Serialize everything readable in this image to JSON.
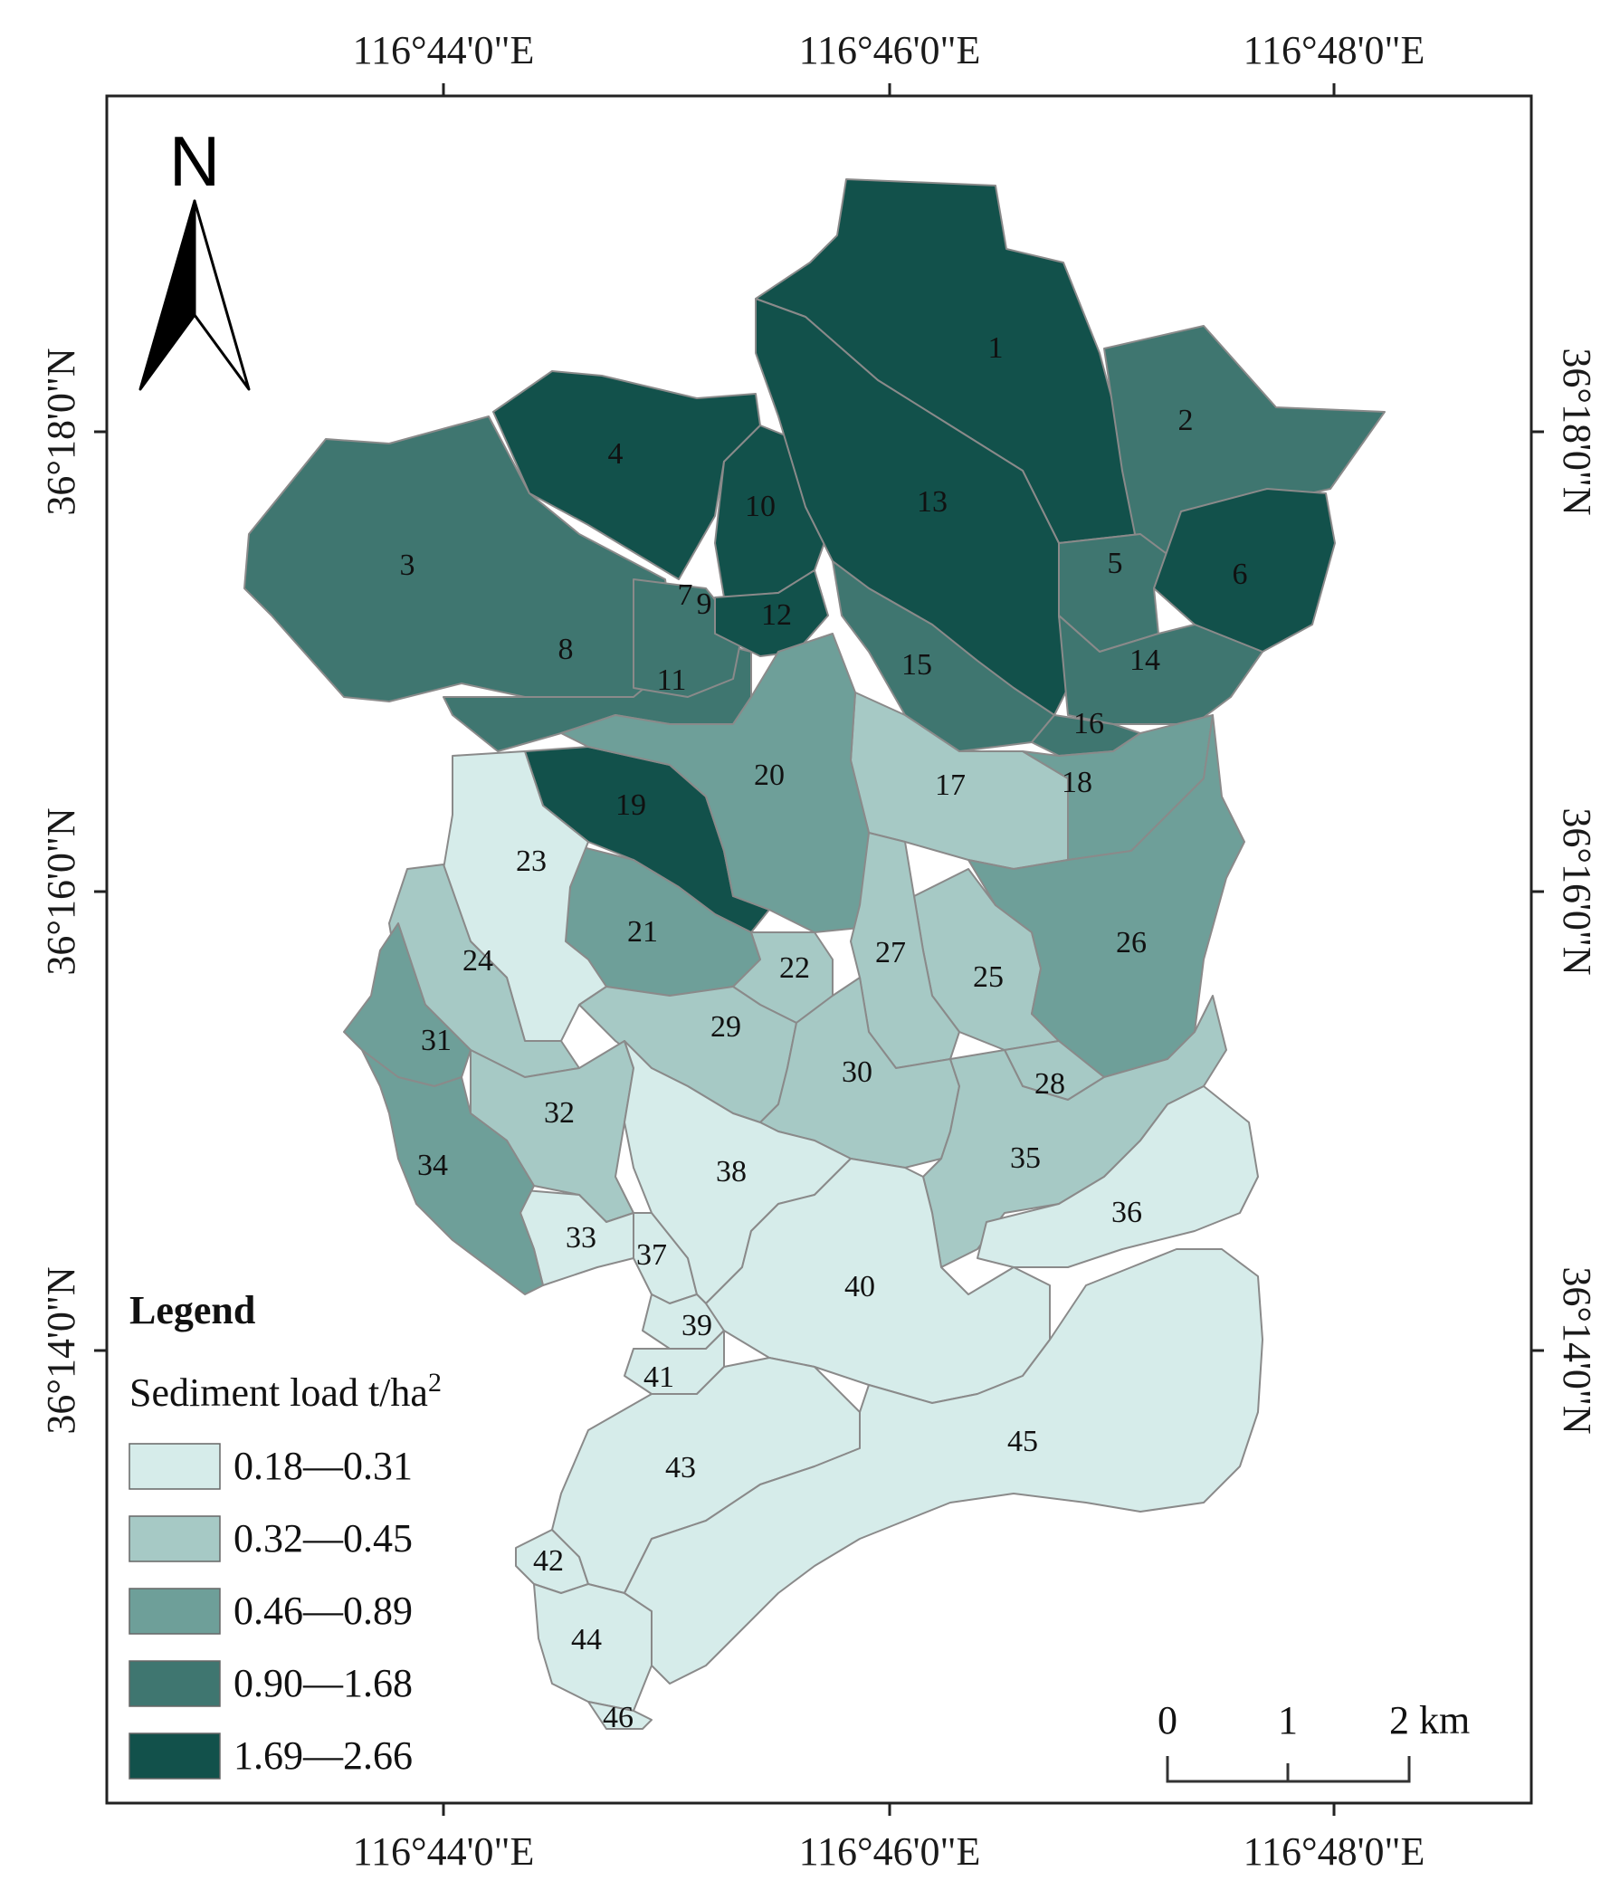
{
  "top_labels": [
    "116°44'0\"E",
    "116°46'0\"E",
    "116°48'0\"E"
  ],
  "bottom_labels": [
    "116°44'0\"E",
    "116°46'0\"E",
    "116°48'0\"E"
  ],
  "left_labels": [
    "36°18'0\"N",
    "36°16'0\"N",
    "36°14'0\"N"
  ],
  "right_labels": [
    "36°18'0\"N",
    "36°16'0\"N",
    "36°14'0\"N"
  ],
  "north_arrow": {
    "letter": "N",
    "icon": "north-arrow-icon"
  },
  "legend": {
    "title": "Legend",
    "subtitle": "Sediment load t/ha",
    "subtitle_sup": "2",
    "classes": [
      {
        "range": "0.18—0.31",
        "color": "#d6ecea"
      },
      {
        "range": "0.32—0.45",
        "color": "#a6c9c5"
      },
      {
        "range": "0.46—0.89",
        "color": "#6e9f99"
      },
      {
        "range": "0.90—1.68",
        "color": "#3f7670"
      },
      {
        "range": "1.69—2.66",
        "color": "#12514b"
      }
    ]
  },
  "scale_bar": {
    "labels": [
      "0",
      "1",
      "2 km"
    ]
  },
  "subbasins": [
    {
      "id": "1",
      "class": 4
    },
    {
      "id": "2",
      "class": 3
    },
    {
      "id": "3",
      "class": 3
    },
    {
      "id": "4",
      "class": 4
    },
    {
      "id": "5",
      "class": 3
    },
    {
      "id": "6",
      "class": 4
    },
    {
      "id": "7",
      "class": 3
    },
    {
      "id": "8",
      "class": 3
    },
    {
      "id": "9",
      "class": 3
    },
    {
      "id": "10",
      "class": 4
    },
    {
      "id": "11",
      "class": 3
    },
    {
      "id": "12",
      "class": 4
    },
    {
      "id": "13",
      "class": 4
    },
    {
      "id": "14",
      "class": 3
    },
    {
      "id": "15",
      "class": 3
    },
    {
      "id": "16",
      "class": 3
    },
    {
      "id": "17",
      "class": 1
    },
    {
      "id": "18",
      "class": 2
    },
    {
      "id": "19",
      "class": 4
    },
    {
      "id": "20",
      "class": 2
    },
    {
      "id": "21",
      "class": 2
    },
    {
      "id": "22",
      "class": 1
    },
    {
      "id": "23",
      "class": 0
    },
    {
      "id": "24",
      "class": 1
    },
    {
      "id": "25",
      "class": 1
    },
    {
      "id": "26",
      "class": 2
    },
    {
      "id": "27",
      "class": 1
    },
    {
      "id": "28",
      "class": 1
    },
    {
      "id": "29",
      "class": 1
    },
    {
      "id": "30",
      "class": 1
    },
    {
      "id": "31",
      "class": 2
    },
    {
      "id": "32",
      "class": 1
    },
    {
      "id": "33",
      "class": 0
    },
    {
      "id": "34",
      "class": 2
    },
    {
      "id": "35",
      "class": 1
    },
    {
      "id": "36",
      "class": 0
    },
    {
      "id": "37",
      "class": 0
    },
    {
      "id": "38",
      "class": 0
    },
    {
      "id": "39",
      "class": 0
    },
    {
      "id": "40",
      "class": 0
    },
    {
      "id": "41",
      "class": 0
    },
    {
      "id": "42",
      "class": 0
    },
    {
      "id": "43",
      "class": 0
    },
    {
      "id": "44",
      "class": 0
    },
    {
      "id": "45",
      "class": 0
    },
    {
      "id": "46",
      "class": 0
    }
  ]
}
